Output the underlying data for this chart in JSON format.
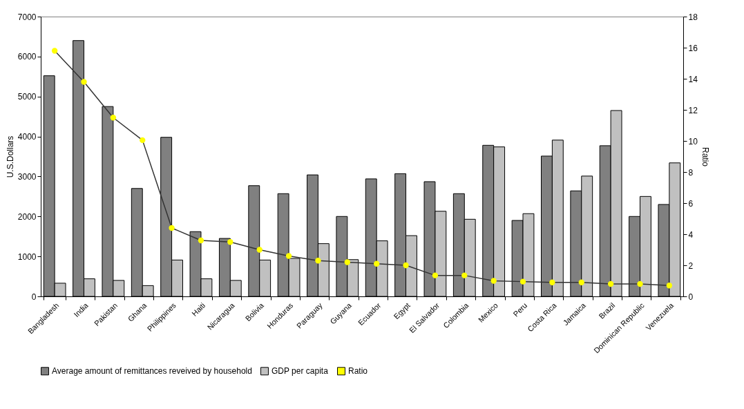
{
  "chart_data": {
    "type": "bar",
    "categories": [
      "Bangladesh",
      "India",
      "Pakistan",
      "Ghana",
      "Philippines",
      "Haiti",
      "Nicaragua",
      "Bolivia",
      "Honduras",
      "Paraguay",
      "Guyana",
      "Ecuador",
      "Egypt",
      "El Salvador",
      "Colombia",
      "Mexico",
      "Peru",
      "Costa Rica",
      "Jamaica",
      "Brazil",
      "Dominican Republic",
      "Venezuela"
    ],
    "series": [
      {
        "name": "Average amount of remittances reveived by household",
        "color": "#808080",
        "values": [
          5520,
          6400,
          4750,
          2700,
          3980,
          1620,
          1450,
          2770,
          2570,
          3040,
          2000,
          2940,
          3070,
          2870,
          2570,
          3780,
          1900,
          3510,
          2640,
          3770,
          2000,
          2300
        ]
      },
      {
        "name": "GDP per capita",
        "color": "#c0c0c0",
        "values": [
          330,
          440,
          400,
          270,
          910,
          440,
          400,
          910,
          950,
          1320,
          920,
          1390,
          1520,
          2130,
          1930,
          3740,
          2070,
          3910,
          3010,
          4650,
          2500,
          3340
        ]
      },
      {
        "name": "Ratio",
        "type": "line",
        "axis": "y2",
        "color": "#ffff00",
        "values": [
          15.8,
          13.8,
          11.5,
          10.05,
          4.4,
          3.6,
          3.5,
          3.0,
          2.6,
          2.3,
          2.2,
          2.1,
          2.0,
          1.35,
          1.35,
          1.0,
          0.95,
          0.9,
          0.9,
          0.8,
          0.8,
          0.7
        ]
      }
    ],
    "ylabel": "U.S.Dollars",
    "y2label": "Ratio",
    "ylim": [
      0,
      7000
    ],
    "yticks": [
      0,
      1000,
      2000,
      3000,
      4000,
      5000,
      6000,
      7000
    ],
    "y2lim": [
      0,
      18
    ],
    "y2ticks": [
      0,
      2,
      4,
      6,
      8,
      10,
      12,
      14,
      16,
      18
    ],
    "legend": "bottom",
    "marker": "circle",
    "grid": false
  }
}
